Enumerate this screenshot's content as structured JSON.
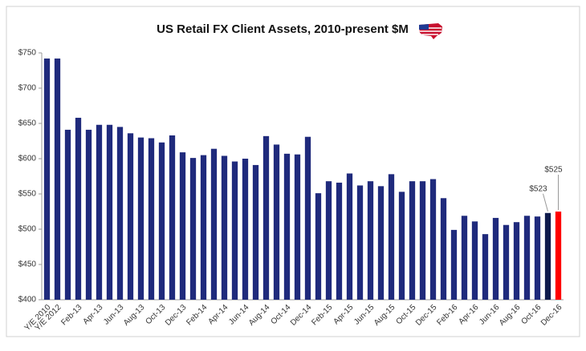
{
  "chart_data": {
    "type": "bar",
    "title": "US Retail FX Client Assets, 2010-present $M",
    "categories": [
      "Y/E 2010",
      "Y/E 2012",
      null,
      "Feb-13",
      null,
      "Apr-13",
      null,
      "Jun-13",
      null,
      "Aug-13",
      null,
      "Oct-13",
      null,
      "Dec-13",
      null,
      "Feb-14",
      null,
      "Apr-14",
      null,
      "Jun-14",
      null,
      "Aug-14",
      null,
      "Oct-14",
      null,
      "Dec-14",
      null,
      "Feb-15",
      null,
      "Apr-15",
      null,
      "Jun-15",
      null,
      "Aug-15",
      null,
      "Oct-15",
      null,
      "Dec-15",
      null,
      "Feb-16",
      null,
      "Apr-16",
      null,
      "Jun-16",
      null,
      "Aug-16",
      null,
      "Oct-16",
      null,
      "Dec-16"
    ],
    "values": [
      742,
      742,
      641,
      658,
      641,
      648,
      648,
      645,
      636,
      630,
      629,
      623,
      633,
      609,
      601,
      605,
      614,
      604,
      596,
      600,
      591,
      632,
      620,
      607,
      606,
      631,
      551,
      568,
      566,
      579,
      562,
      568,
      561,
      578,
      553,
      568,
      568,
      571,
      544,
      499,
      519,
      511,
      493,
      516,
      506,
      510,
      519,
      518,
      523,
      525
    ],
    "value_labels": [
      null,
      null,
      null,
      null,
      null,
      null,
      null,
      null,
      null,
      null,
      null,
      null,
      null,
      null,
      null,
      null,
      null,
      null,
      null,
      null,
      null,
      null,
      null,
      null,
      null,
      null,
      null,
      null,
      null,
      null,
      null,
      null,
      null,
      null,
      null,
      null,
      null,
      null,
      null,
      null,
      null,
      null,
      null,
      null,
      null,
      null,
      null,
      null,
      "$523",
      "$525"
    ],
    "color": "#1f2a7c",
    "colors": [
      "#1f2a7c",
      "#1f2a7c",
      "#1f2a7c",
      "#1f2a7c",
      "#1f2a7c",
      "#1f2a7c",
      "#1f2a7c",
      "#1f2a7c",
      "#1f2a7c",
      "#1f2a7c",
      "#1f2a7c",
      "#1f2a7c",
      "#1f2a7c",
      "#1f2a7c",
      "#1f2a7c",
      "#1f2a7c",
      "#1f2a7c",
      "#1f2a7c",
      "#1f2a7c",
      "#1f2a7c",
      "#1f2a7c",
      "#1f2a7c",
      "#1f2a7c",
      "#1f2a7c",
      "#1f2a7c",
      "#1f2a7c",
      "#1f2a7c",
      "#1f2a7c",
      "#1f2a7c",
      "#1f2a7c",
      "#1f2a7c",
      "#1f2a7c",
      "#1f2a7c",
      "#1f2a7c",
      "#1f2a7c",
      "#1f2a7c",
      "#1f2a7c",
      "#1f2a7c",
      "#1f2a7c",
      "#1f2a7c",
      "#1f2a7c",
      "#1f2a7c",
      "#1f2a7c",
      "#1f2a7c",
      "#1f2a7c",
      "#1f2a7c",
      "#1f2a7c",
      "#1f2a7c",
      "#0e1a4c",
      "#ff0000"
    ],
    "ylim": [
      400,
      750
    ],
    "yticks": [
      {
        "value": 400,
        "label": "$400"
      },
      {
        "value": 450,
        "label": "$450"
      },
      {
        "value": 500,
        "label": "$500"
      },
      {
        "value": 550,
        "label": "$550"
      },
      {
        "value": 600,
        "label": "$600"
      },
      {
        "value": 650,
        "label": "$650"
      },
      {
        "value": 700,
        "label": "$700"
      },
      {
        "value": 750,
        "label": "$750"
      }
    ],
    "grid": false
  }
}
